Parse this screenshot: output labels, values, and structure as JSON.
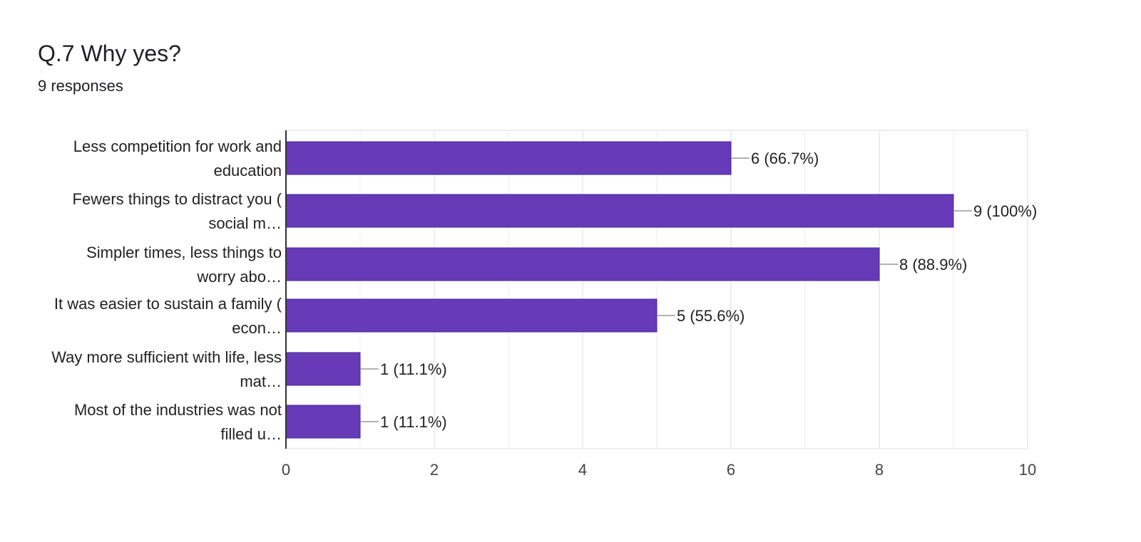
{
  "header": {
    "title": "Q.7 Why yes?",
    "responses": "9 responses"
  },
  "colors": {
    "bar_fill": "#673ab7",
    "bar_stroke": "#4527a0",
    "grid": "#eeeeee",
    "axis": "#333333",
    "leader": "#999999"
  },
  "chart_data": {
    "type": "bar",
    "orientation": "horizontal",
    "title": "Q.7 Why yes?",
    "subtitle": "9 responses",
    "categories": [
      [
        "Less competition for work and",
        "education"
      ],
      [
        "Fewers things to distract you (",
        "social m…"
      ],
      [
        "Simpler times, less things to",
        "worry abo…"
      ],
      [
        "It was easier to sustain a family (",
        "econ…"
      ],
      [
        "Way more sufficient with life, less",
        "mat…"
      ],
      [
        "Most of the industries was not",
        "filled u…"
      ]
    ],
    "values": [
      6,
      9,
      8,
      5,
      1,
      1
    ],
    "data_labels": [
      "6 (66.7%)",
      "9 (100%)",
      "8 (88.9%)",
      "5 (55.6%)",
      "1 (11.1%)",
      "1 (11.1%)"
    ],
    "xlim": [
      0,
      10
    ],
    "xticks": [
      0,
      2,
      4,
      6,
      8,
      10
    ],
    "xtick_labels": [
      "0",
      "2",
      "4",
      "6",
      "8",
      "10"
    ],
    "grid": true,
    "legend": "none"
  }
}
